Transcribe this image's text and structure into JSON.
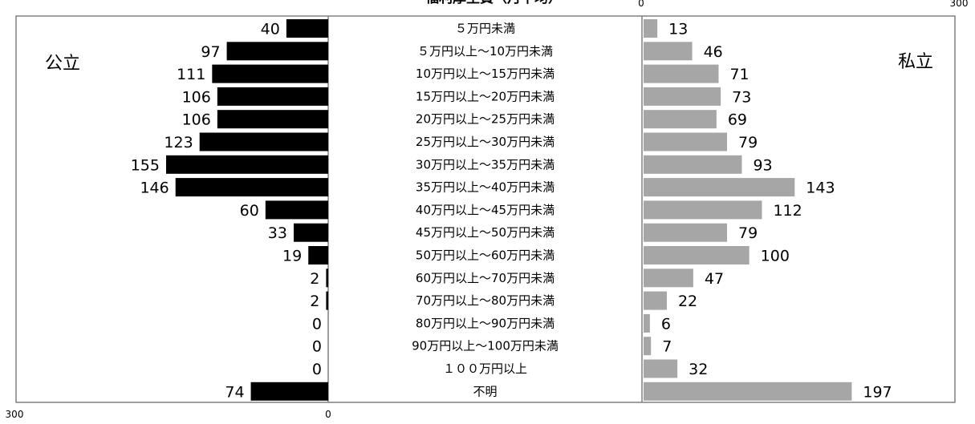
{
  "chart_data": {
    "type": "bar",
    "title": "福利厚生費（月平均）",
    "categories": [
      "５万円未満",
      "５万円以上～10万円未満",
      "10万円以上～15万円未満",
      "15万円以上～20万円未満",
      "20万円以上～25万円未満",
      "25万円以上～30万円未満",
      "30万円以上～35万円未満",
      "35万円以上～40万円未満",
      "40万円以上～45万円未満",
      "45万円以上～50万円未満",
      "50万円以上～60万円未満",
      "60万円以上～70万円未満",
      "70万円以上～80万円未満",
      "80万円以上～90万円未満",
      "90万円以上～100万円未満",
      "１００万円以上",
      "不明"
    ],
    "series": [
      {
        "name": "公立",
        "color": "#000000",
        "values": [
          40,
          97,
          111,
          106,
          106,
          123,
          155,
          146,
          60,
          33,
          19,
          2,
          2,
          0,
          0,
          0,
          74
        ]
      },
      {
        "name": "私立",
        "color": "#a6a6a6",
        "values": [
          13,
          46,
          71,
          73,
          69,
          79,
          93,
          143,
          112,
          79,
          100,
          47,
          22,
          6,
          7,
          32,
          197
        ]
      }
    ],
    "axes": {
      "left": {
        "min": 0,
        "max": 300,
        "min_label": "0",
        "max_label": "300",
        "reversed": true
      },
      "right": {
        "min": 0,
        "max": 300,
        "min_label": "0",
        "max_label": "300"
      }
    },
    "grid": false,
    "legend": "none"
  }
}
